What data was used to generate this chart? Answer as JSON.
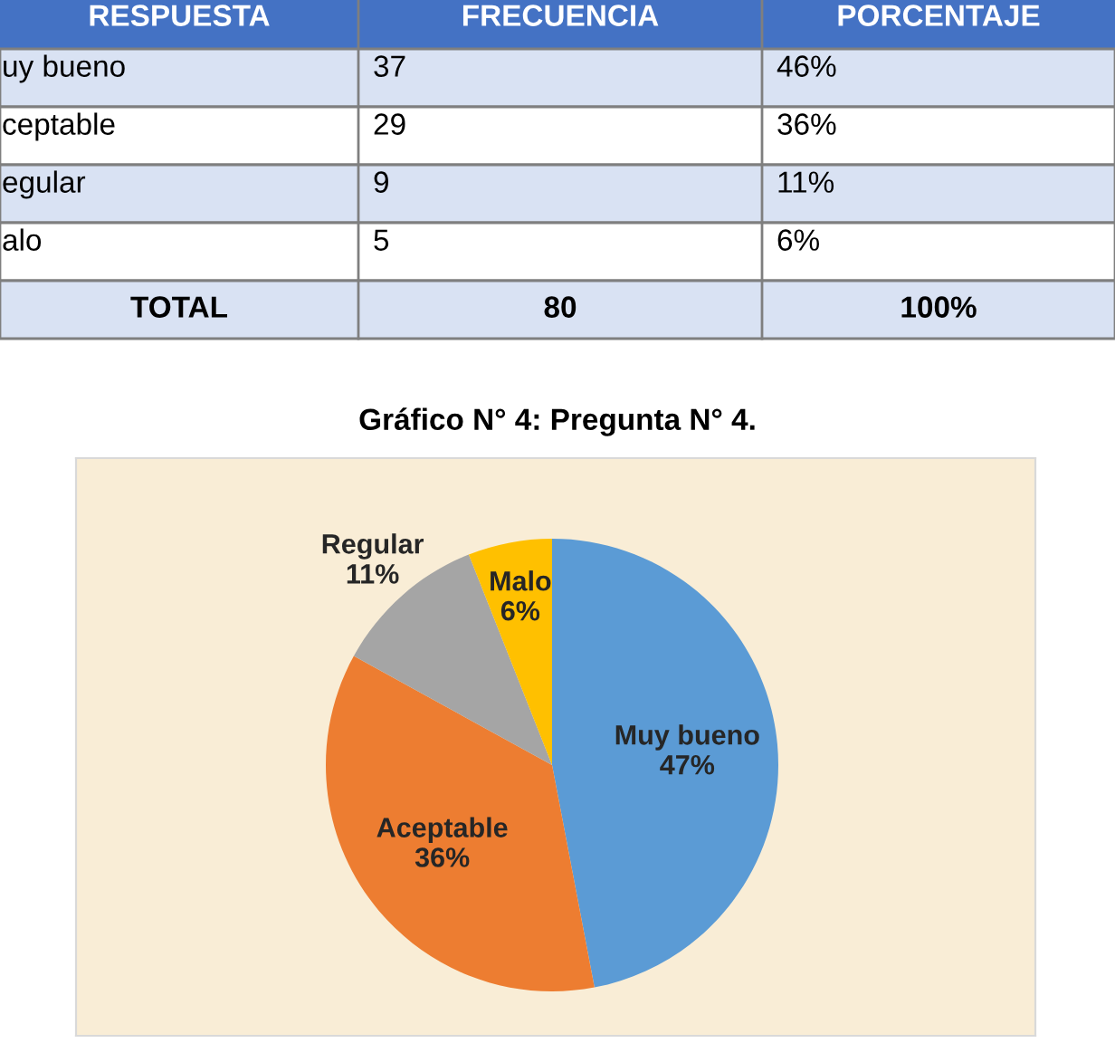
{
  "chart_data": [
    {
      "type": "other",
      "categories": [
        "RESPUESTA",
        "FRECUENCIA",
        "PORCENTAJE"
      ],
      "annotations": [
        "uy bueno",
        "37",
        "46%",
        "ceptable",
        "29",
        "36%",
        "egular",
        "9",
        "11%",
        "alo",
        "5",
        "6%",
        "TOTAL",
        "80",
        "100%"
      ]
    },
    {
      "type": "pie",
      "title": "Gráfico N° 4: Pregunta N° 4.",
      "categories": [
        "Muy bueno",
        "Aceptable",
        "Regular",
        "Malo"
      ],
      "values": [
        47,
        36,
        11,
        6
      ],
      "value_labels": [
        "47%",
        "36%",
        "11%",
        "6%"
      ],
      "colors": [
        "#5b9bd5",
        "#ed7d31",
        "#a5a5a5",
        "#ffc000"
      ]
    }
  ]
}
